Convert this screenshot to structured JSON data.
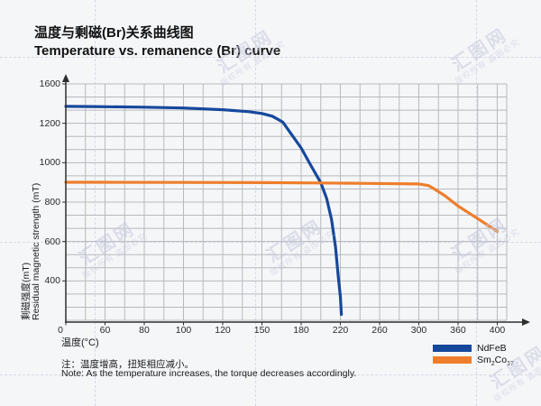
{
  "header": {
    "title_zh": "温度与剩磁(Br)关系曲线图",
    "title_en": "Temperature vs. remanence (Br) curve"
  },
  "chart_data": {
    "type": "line",
    "xlabel": "温度(°C)",
    "ylabel_zh": "剩磁强度(mT)",
    "ylabel_en": "Residual magnetic strength (mT)",
    "x_ticks": [
      0,
      60,
      80,
      100,
      120,
      150,
      180,
      220,
      260,
      300,
      360,
      400
    ],
    "y_ticks": [
      0,
      400,
      600,
      800,
      1000,
      1200,
      1600
    ],
    "grid": true,
    "legend_position": "bottom-right",
    "series": [
      {
        "name": "NdFeB",
        "color": "#16489c",
        "points": [
          [
            0,
            1372
          ],
          [
            40,
            1370
          ],
          [
            80,
            1364
          ],
          [
            100,
            1355
          ],
          [
            120,
            1338
          ],
          [
            140,
            1318
          ],
          [
            150,
            1300
          ],
          [
            158,
            1272
          ],
          [
            166,
            1212
          ],
          [
            173,
            1140
          ],
          [
            180,
            1075
          ],
          [
            190,
            985
          ],
          [
            200,
            898
          ],
          [
            206,
            818
          ],
          [
            211,
            712
          ],
          [
            215,
            572
          ],
          [
            218,
            415
          ],
          [
            220,
            240
          ],
          [
            221,
            60
          ]
        ]
      },
      {
        "name": "Sm2Co17",
        "name_parts": [
          "Sm",
          "2",
          "Co",
          "17"
        ],
        "color": "#ee7e2b",
        "points": [
          [
            0,
            901
          ],
          [
            50,
            901
          ],
          [
            100,
            900
          ],
          [
            150,
            899
          ],
          [
            200,
            897
          ],
          [
            250,
            895
          ],
          [
            300,
            892
          ],
          [
            315,
            884
          ],
          [
            325,
            864
          ],
          [
            340,
            832
          ],
          [
            360,
            780
          ],
          [
            380,
            716
          ],
          [
            400,
            651
          ]
        ]
      }
    ]
  },
  "notes": {
    "line_zh": "注：温度增高，扭矩相应减小。",
    "line_en": "Note: As the temperature increases, the torque decreases accordingly."
  },
  "watermark": {
    "logo": "汇图网",
    "caption": "版权所有 盗图必究"
  }
}
